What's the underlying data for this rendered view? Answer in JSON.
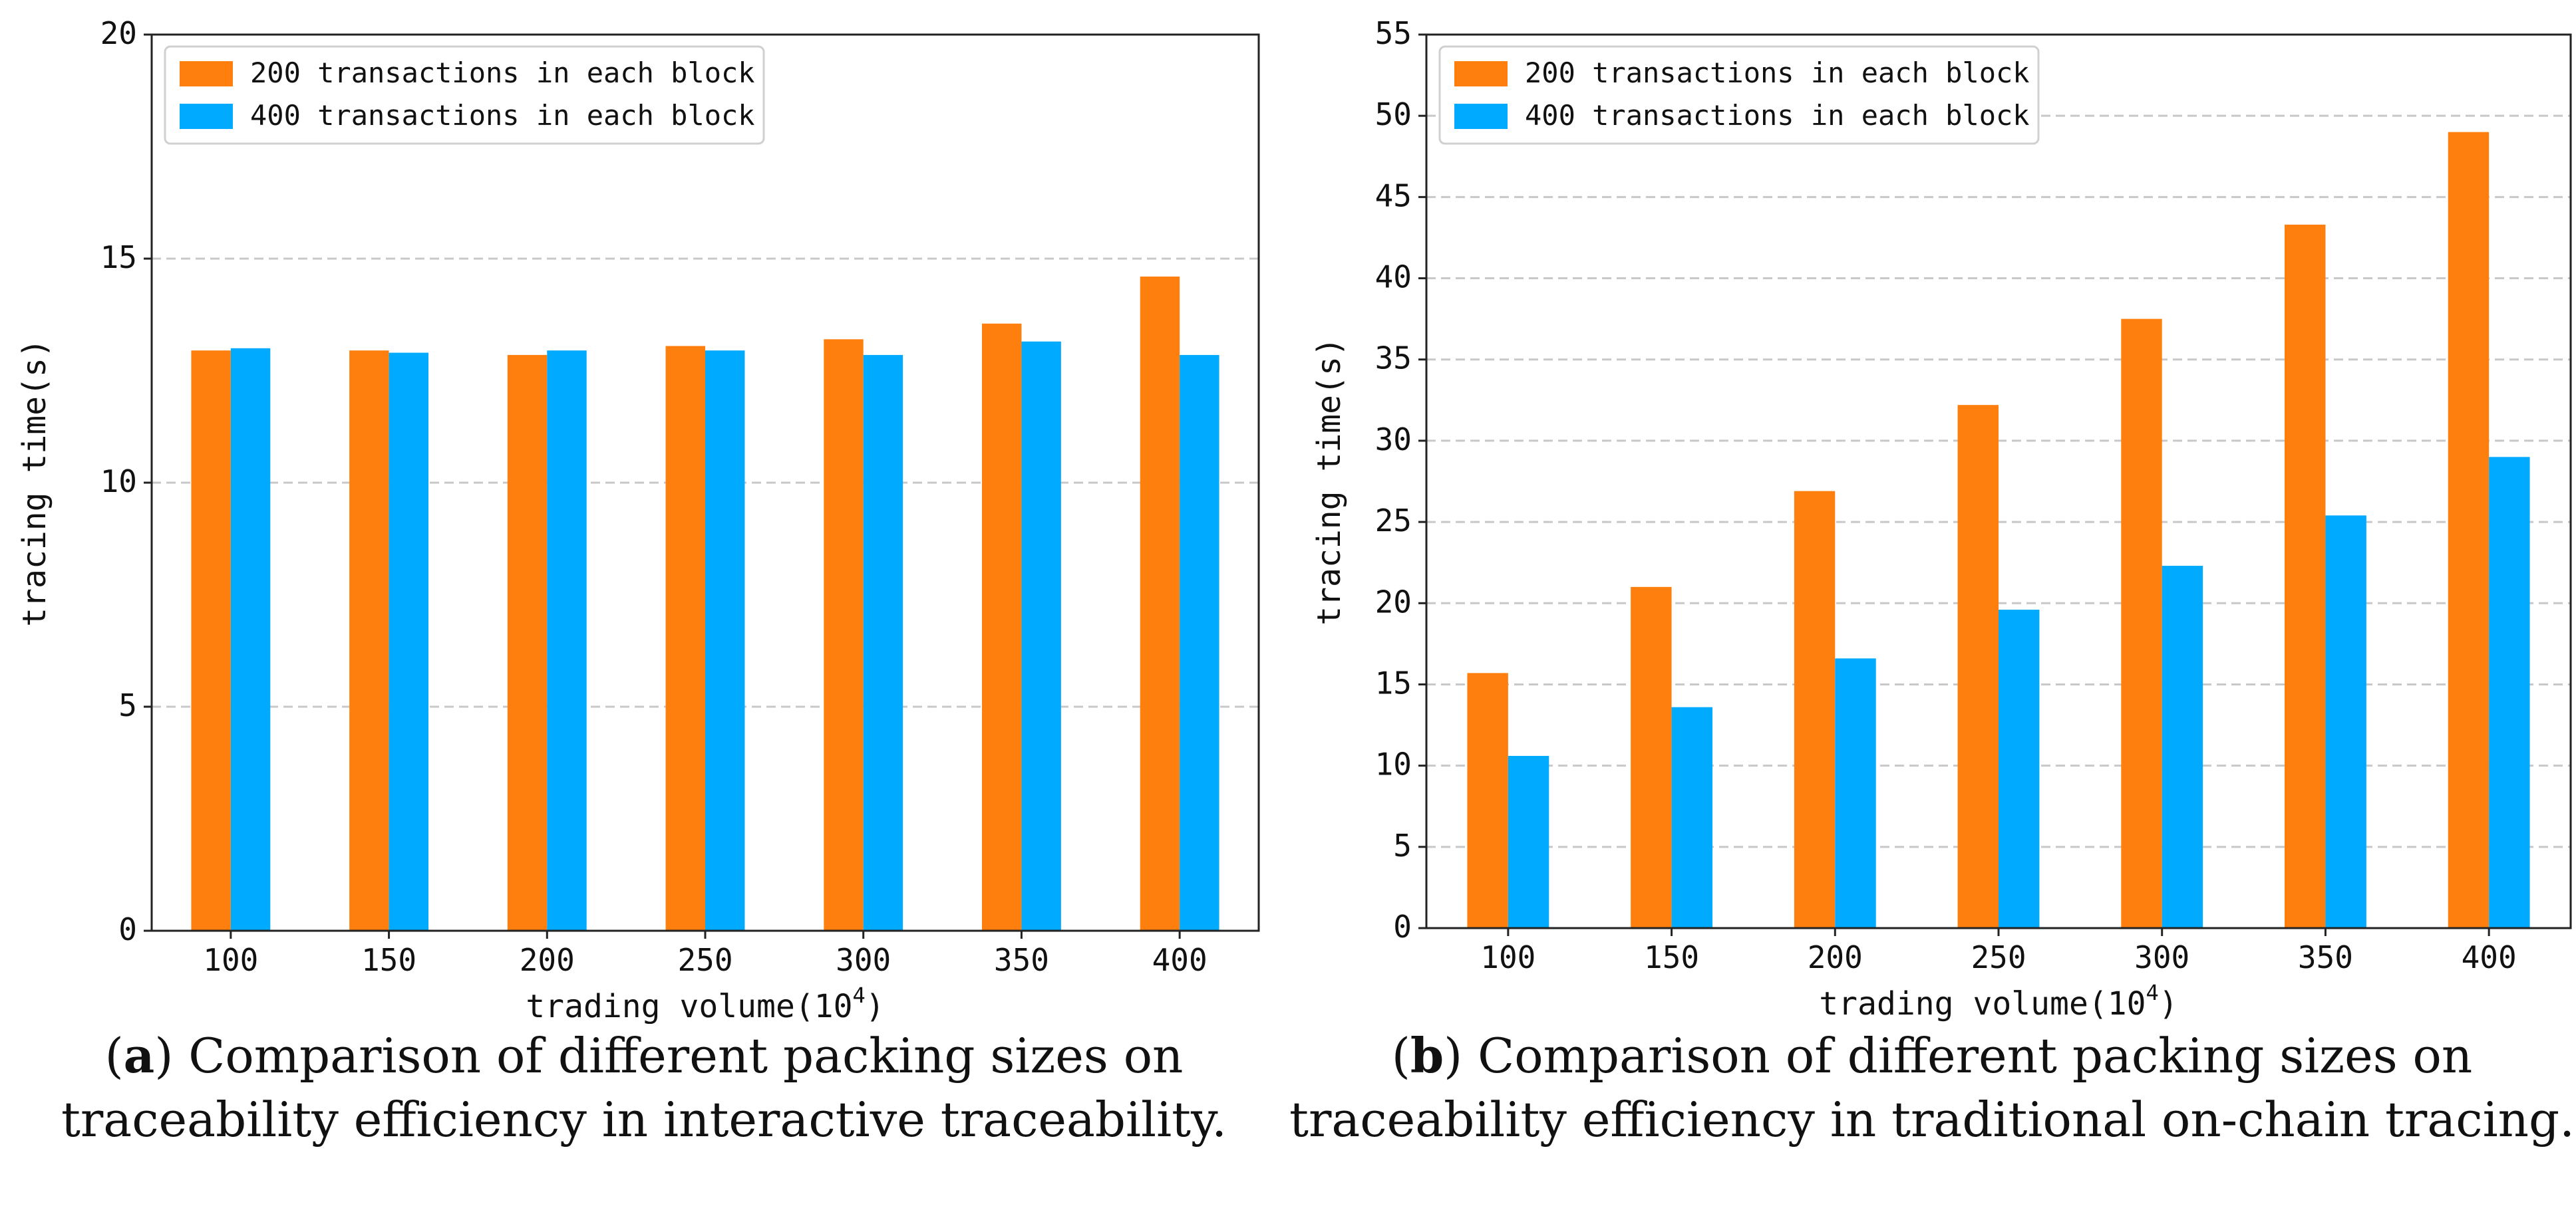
{
  "charts": [
    {
      "type": "bar",
      "title": "",
      "xlabel": "trading volume",
      "xlabel_unit_base": "10",
      "xlabel_unit_exp": "4",
      "ylabel": "tracing time(s)",
      "categories": [
        "100",
        "150",
        "200",
        "250",
        "300",
        "350",
        "400"
      ],
      "ylim": [
        0,
        20
      ],
      "yticks": [
        0,
        5,
        10,
        15,
        20
      ],
      "grid": true,
      "legend_position": "top-left",
      "series": [
        {
          "name": "200 transactions in each block",
          "color": "#ff7f0e",
          "values": [
            12.95,
            12.95,
            12.85,
            13.05,
            13.2,
            13.55,
            14.6
          ]
        },
        {
          "name": "400 transactions in each block",
          "color": "#00aaff",
          "values": [
            13.0,
            12.9,
            12.95,
            12.95,
            12.85,
            13.15,
            12.85
          ]
        }
      ],
      "caption_label": "a",
      "caption_text": "Comparison of different packing sizes on traceability efficiency in interactive traceability."
    },
    {
      "type": "bar",
      "title": "",
      "xlabel": "trading volume",
      "xlabel_unit_base": "10",
      "xlabel_unit_exp": "4",
      "ylabel": "tracing time(s)",
      "categories": [
        "100",
        "150",
        "200",
        "250",
        "300",
        "350",
        "400"
      ],
      "ylim": [
        0,
        55
      ],
      "yticks": [
        0,
        5,
        10,
        15,
        20,
        25,
        30,
        35,
        40,
        45,
        50,
        55
      ],
      "grid": true,
      "legend_position": "top-left",
      "series": [
        {
          "name": "200 transactions in each block",
          "color": "#ff7f0e",
          "values": [
            15.7,
            21.0,
            26.9,
            32.2,
            37.5,
            43.3,
            49.0
          ]
        },
        {
          "name": "400 transactions in each block",
          "color": "#00aaff",
          "values": [
            10.6,
            13.6,
            16.6,
            19.6,
            22.3,
            25.4,
            29.0
          ]
        }
      ],
      "caption_label": "b",
      "caption_text": "Comparison of different packing sizes on traceability efficiency in traditional on-chain tracing."
    }
  ]
}
